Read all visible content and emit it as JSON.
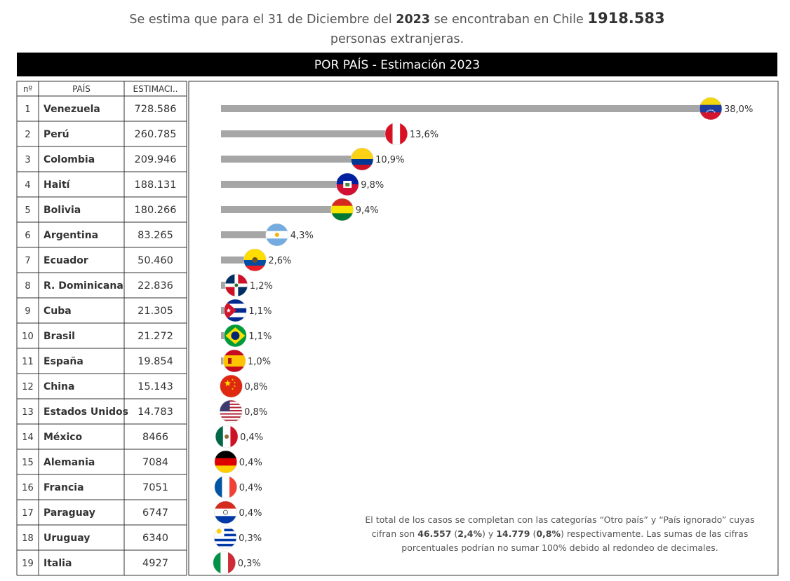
{
  "header": {
    "prefix": "Se estima que para el 31 de Diciembre del",
    "year": "2023",
    "middle": "se encontraban en Chile",
    "total": "1918.583",
    "suffix": "personas extranjeras."
  },
  "banner": {
    "title": "POR PAÍS - Estimación 2023"
  },
  "table": {
    "col_no": "nº",
    "col_country": "PAÍS",
    "col_estimate": "ESTIMACI.."
  },
  "chart_data": {
    "type": "bar",
    "orientation": "horizontal",
    "title": "POR PAÍS - Estimación 2023",
    "grid": false,
    "rows": [
      {
        "n": "1",
        "country": "Venezuela",
        "estimate": "728.586",
        "value": 728586,
        "pct": "38,0%",
        "flag": "venezuela-flag"
      },
      {
        "n": "2",
        "country": "Perú",
        "estimate": "260.785",
        "value": 260785,
        "pct": "13,6%",
        "flag": "peru-flag"
      },
      {
        "n": "3",
        "country": "Colombia",
        "estimate": "209.946",
        "value": 209946,
        "pct": "10,9%",
        "flag": "colombia-flag"
      },
      {
        "n": "4",
        "country": "Haití",
        "estimate": "188.131",
        "value": 188131,
        "pct": "9,8%",
        "flag": "haiti-flag"
      },
      {
        "n": "5",
        "country": "Bolivia",
        "estimate": "180.266",
        "value": 180266,
        "pct": "9,4%",
        "flag": "bolivia-flag"
      },
      {
        "n": "6",
        "country": "Argentina",
        "estimate": "83.265",
        "value": 83265,
        "pct": "4,3%",
        "flag": "argentina-flag"
      },
      {
        "n": "7",
        "country": "Ecuador",
        "estimate": "50.460",
        "value": 50460,
        "pct": "2,6%",
        "flag": "ecuador-flag"
      },
      {
        "n": "8",
        "country": "R. Dominicana",
        "estimate": "22.836",
        "value": 22836,
        "pct": "1,2%",
        "flag": "dominican-republic-flag"
      },
      {
        "n": "9",
        "country": "Cuba",
        "estimate": "21.305",
        "value": 21305,
        "pct": "1,1%",
        "flag": "cuba-flag"
      },
      {
        "n": "10",
        "country": "Brasil",
        "estimate": "21.272",
        "value": 21272,
        "pct": "1,1%",
        "flag": "brazil-flag"
      },
      {
        "n": "11",
        "country": "España",
        "estimate": "19.854",
        "value": 19854,
        "pct": "1,0%",
        "flag": "spain-flag"
      },
      {
        "n": "12",
        "country": "China",
        "estimate": "15.143",
        "value": 15143,
        "pct": "0,8%",
        "flag": "china-flag"
      },
      {
        "n": "13",
        "country": "Estados Unidos",
        "estimate": "14.783",
        "value": 14783,
        "pct": "0,8%",
        "flag": "usa-flag"
      },
      {
        "n": "14",
        "country": "México",
        "estimate": "8466",
        "value": 8466,
        "pct": "0,4%",
        "flag": "mexico-flag"
      },
      {
        "n": "15",
        "country": "Alemania",
        "estimate": "7084",
        "value": 7084,
        "pct": "0,4%",
        "flag": "germany-flag"
      },
      {
        "n": "16",
        "country": "Francia",
        "estimate": "7051",
        "value": 7051,
        "pct": "0,4%",
        "flag": "france-flag"
      },
      {
        "n": "17",
        "country": "Paraguay",
        "estimate": "6747",
        "value": 6747,
        "pct": "0,4%",
        "flag": "paraguay-flag"
      },
      {
        "n": "18",
        "country": "Uruguay",
        "estimate": "6340",
        "value": 6340,
        "pct": "0,3%",
        "flag": "uruguay-flag"
      },
      {
        "n": "19",
        "country": "Italia",
        "estimate": "4927",
        "value": 4927,
        "pct": "0,3%",
        "flag": "italy-flag"
      }
    ]
  },
  "footnote": {
    "part1": "El total de los casos se completan con las categorías “Otro país” y “País ignorado” cuyas cifran son",
    "v1": "46.557",
    "p1": "2,4%",
    "conj": "y",
    "v2": "14.779",
    "p2": "0,8%",
    "part2": "respectivamente. Las sumas de las cifras porcentuales podrían no sumar 100% debido al redondeo de decimales."
  },
  "colors": {
    "bar": "#a6a6a6",
    "banner": "#000000",
    "border": "#333333"
  }
}
